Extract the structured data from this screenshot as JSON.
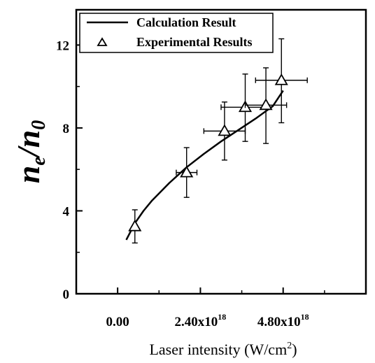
{
  "chart_data": {
    "type": "scatter",
    "xlabel": "Laser intensity  (W/cm",
    "xlabel_sup": "2",
    "xlabel_close": ")",
    "ylabel": {
      "n1": "n",
      "sub1": "e",
      "slash": "/",
      "n2": "n",
      "sub2": "0"
    },
    "xlim": [
      -1.2e+18,
      7.2e+18
    ],
    "ylim": [
      0,
      13.7
    ],
    "x_ticks": [
      {
        "value": 0,
        "mant": "0.00",
        "exp": ""
      },
      {
        "value": 2.4e+18,
        "mant": "2.40x10",
        "exp": "18"
      },
      {
        "value": 4.8e+18,
        "mant": "4.80x10",
        "exp": "18"
      }
    ],
    "y_ticks": [
      {
        "value": 0,
        "label": "0"
      },
      {
        "value": 4,
        "label": "4"
      },
      {
        "value": 8,
        "label": "8"
      },
      {
        "value": 12,
        "label": "12"
      }
    ],
    "legend": {
      "position": "top-left",
      "entries": [
        {
          "label": "Calculation Result",
          "marker": "line"
        },
        {
          "label": "Experimental Results",
          "marker": "triangle"
        }
      ]
    },
    "series": [
      {
        "name": "Calculation Result",
        "kind": "line",
        "x": [
          2.5e+17,
          5e+17,
          7.5e+17,
          1e+18,
          1.5e+18,
          2e+18,
          2.5e+18,
          3e+18,
          3.5e+18,
          4e+18,
          4.5e+18,
          4.8e+18
        ],
        "y": [
          2.6,
          3.4,
          4.0,
          4.5,
          5.35,
          6.1,
          6.75,
          7.35,
          7.9,
          8.45,
          9.05,
          9.8
        ]
      },
      {
        "name": "Experimental Results",
        "kind": "points",
        "marker": "triangle",
        "points": [
          {
            "x": 5e+17,
            "y": 3.25,
            "xerr": 5e+16,
            "yerr_low": 0.8,
            "yerr_high": 0.8
          },
          {
            "x": 2e+18,
            "y": 5.85,
            "xerr": 3e+17,
            "yerr_low": 1.2,
            "yerr_high": 1.2
          },
          {
            "x": 3.1e+18,
            "y": 7.85,
            "xerr": 6e+17,
            "yerr_low": 1.4,
            "yerr_high": 1.4
          },
          {
            "x": 3.7e+18,
            "y": 9.0,
            "xerr": 7e+17,
            "yerr_low": 1.65,
            "yerr_high": 1.6
          },
          {
            "x": 4.3e+18,
            "y": 9.1,
            "xerr": 6e+17,
            "yerr_low": 1.85,
            "yerr_high": 1.8
          },
          {
            "x": 4.75e+18,
            "y": 10.3,
            "xerr": 7.5e+17,
            "yerr_low": 2.05,
            "yerr_high": 2.0
          }
        ]
      }
    ],
    "grid": false
  }
}
